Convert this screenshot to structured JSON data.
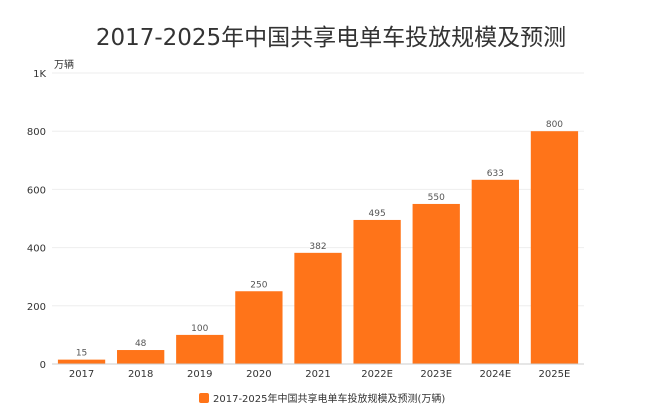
{
  "chart_data": {
    "type": "bar",
    "title": "2017-2025年中国共享电单车投放规模及预测",
    "ylabel": "万辆",
    "xlabel": "",
    "categories": [
      "2017",
      "2018",
      "2019",
      "2020",
      "2021",
      "2022E",
      "2023E",
      "2024E",
      "2025E"
    ],
    "series": [
      {
        "name": "2017-2025年中国共享电单车投放规模及预测(万辆)",
        "values": [
          15,
          48,
          100,
          250,
          382,
          495,
          550,
          633,
          800
        ],
        "color": "#FF7419"
      }
    ],
    "data_labels": [
      "15",
      "48",
      "100",
      "250",
      "382",
      "495",
      "550",
      "633",
      "800"
    ],
    "ylim": [
      0,
      1000
    ],
    "y_ticks": [
      0,
      200,
      400,
      600,
      800,
      1000
    ],
    "y_tick_labels": [
      "0",
      "200",
      "400",
      "600",
      "800",
      "1K"
    ],
    "grid": true,
    "legend_position": "bottom"
  }
}
